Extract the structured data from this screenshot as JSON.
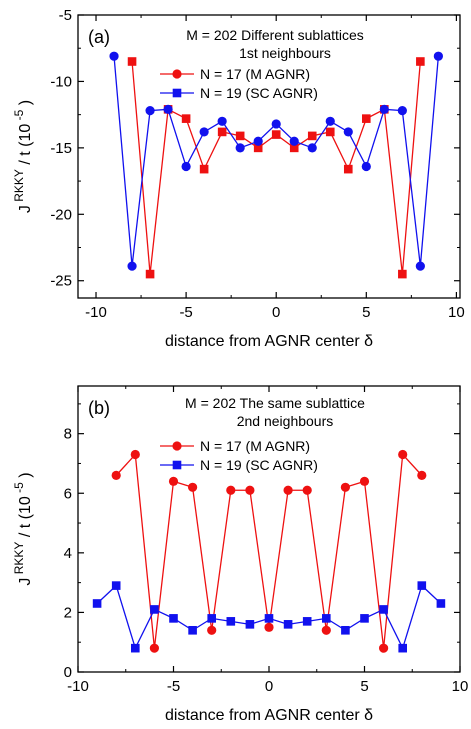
{
  "chart_data": [
    {
      "type": "line",
      "panel_label": "(a)",
      "annotation_lines": [
        "M = 202  Different sublattices",
        "1st neighbours"
      ],
      "xlabel": "distance from AGNR center δ",
      "ylabel_main": "J",
      "ylabel_super": "RKKY",
      "ylabel_rest": "/ t   (10",
      "ylabel_exp": "-5",
      "ylabel_close": ")",
      "xlim": [
        -11,
        10.2
      ],
      "ylim": [
        -26.3,
        -5
      ],
      "xticks": [
        -10,
        -5,
        0,
        5,
        10
      ],
      "xtick_labels": [
        "-10",
        "-5",
        "0",
        "5",
        "10"
      ],
      "yticks": [
        -5,
        -10,
        -15,
        -20,
        -25
      ],
      "ytick_labels": [
        "-5",
        "-10",
        "-15",
        "-20",
        "-25"
      ],
      "legend_position": "top-center",
      "grid": false,
      "series": [
        {
          "name": "N = 17 (M AGNR)",
          "color": "#ee1111",
          "marker": "square",
          "x": [
            -8,
            -7,
            -6,
            -5,
            -4,
            -3,
            -2,
            -1,
            0,
            1,
            2,
            3,
            4,
            5,
            6,
            7,
            8
          ],
          "y": [
            -8.5,
            -24.5,
            -12.1,
            -12.8,
            -16.6,
            -13.8,
            -14.1,
            -15.0,
            -14.0,
            -15.0,
            -14.1,
            -13.8,
            -16.6,
            -12.8,
            -12.1,
            -24.5,
            -8.5
          ]
        },
        {
          "name": "N = 19 (SC AGNR)",
          "color": "#1111ee",
          "marker": "circle",
          "x": [
            -9,
            -8,
            -7,
            -6,
            -5,
            -4,
            -3,
            -2,
            -1,
            0,
            1,
            2,
            3,
            4,
            5,
            6,
            7,
            8,
            9
          ],
          "y": [
            -8.1,
            -23.9,
            -12.2,
            -12.1,
            -16.4,
            -13.8,
            -13.0,
            -15.0,
            -14.5,
            -13.2,
            -14.5,
            -15.0,
            -13.0,
            -13.8,
            -16.4,
            -12.1,
            -12.2,
            -23.9,
            -8.1
          ]
        }
      ],
      "legend_markers": [
        "circle",
        "square"
      ]
    },
    {
      "type": "line",
      "panel_label": "(b)",
      "annotation_lines": [
        "M = 202  The same sublattice",
        "2nd neighbours"
      ],
      "xlabel": "distance from AGNR center δ",
      "ylabel_main": "J",
      "ylabel_super": "RKKY",
      "ylabel_rest": "/ t   (10",
      "ylabel_exp": "-5",
      "ylabel_close": ")",
      "xlim": [
        -10,
        10
      ],
      "ylim": [
        0,
        9.6
      ],
      "xticks": [
        -10,
        -5,
        0,
        5,
        10
      ],
      "xtick_labels": [
        "-10",
        "-5",
        "0",
        "5",
        "10"
      ],
      "yticks": [
        0,
        2,
        4,
        6,
        8
      ],
      "ytick_labels": [
        "0",
        "2",
        "4",
        "6",
        "8"
      ],
      "legend_position": "top-center",
      "grid": false,
      "series": [
        {
          "name": "N = 17 (M AGNR)",
          "color": "#ee1111",
          "marker": "circle",
          "x": [
            -8,
            -7,
            -6,
            -5,
            -4,
            -3,
            -2,
            -1,
            0,
            1,
            2,
            3,
            4,
            5,
            6,
            7,
            8
          ],
          "y": [
            6.6,
            7.3,
            0.8,
            6.4,
            6.2,
            1.4,
            6.1,
            6.1,
            1.5,
            6.1,
            6.1,
            1.4,
            6.2,
            6.4,
            0.8,
            7.3,
            6.6
          ]
        },
        {
          "name": "N = 19 (SC AGNR)",
          "color": "#1111ee",
          "marker": "square",
          "x": [
            -9,
            -8,
            -7,
            -6,
            -5,
            -4,
            -3,
            -2,
            -1,
            0,
            1,
            2,
            3,
            4,
            5,
            6,
            7,
            8,
            9
          ],
          "y": [
            2.3,
            2.9,
            0.8,
            2.1,
            1.8,
            1.4,
            1.8,
            1.7,
            1.6,
            1.8,
            1.6,
            1.7,
            1.8,
            1.4,
            1.8,
            2.1,
            0.8,
            2.9,
            2.3
          ]
        }
      ]
    }
  ]
}
